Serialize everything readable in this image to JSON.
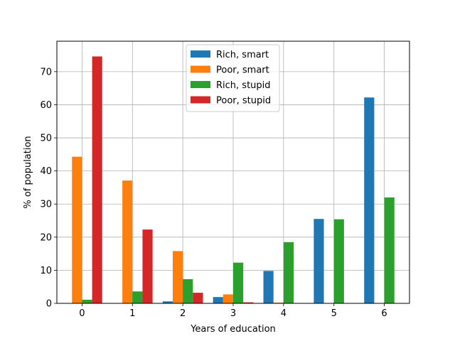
{
  "chart_data": {
    "type": "bar",
    "xlabel": "Years of education",
    "ylabel": "% of population",
    "categories": [
      "0",
      "1",
      "2",
      "3",
      "4",
      "5",
      "6"
    ],
    "xlim": [
      -0.5,
      6.5
    ],
    "ylim": [
      0,
      79.2
    ],
    "yticks": [
      0,
      10,
      20,
      30,
      40,
      50,
      60,
      70
    ],
    "grid": true,
    "legend_position": "top-center",
    "series": [
      {
        "name": "Rich, smart",
        "color": "#1f77b4",
        "values": [
          0,
          0,
          0.6,
          1.9,
          9.8,
          25.5,
          62.2
        ]
      },
      {
        "name": "Poor, smart",
        "color": "#ff7f0e",
        "values": [
          44.3,
          37.1,
          15.8,
          2.7,
          0.2,
          0,
          0
        ]
      },
      {
        "name": "Rich, stupid",
        "color": "#2ca02c",
        "values": [
          1.1,
          3.6,
          7.3,
          12.3,
          18.5,
          25.4,
          32.0
        ]
      },
      {
        "name": "Poor, stupid",
        "color": "#d62728",
        "values": [
          74.6,
          22.3,
          3.2,
          0.3,
          0,
          0,
          0
        ]
      }
    ]
  }
}
